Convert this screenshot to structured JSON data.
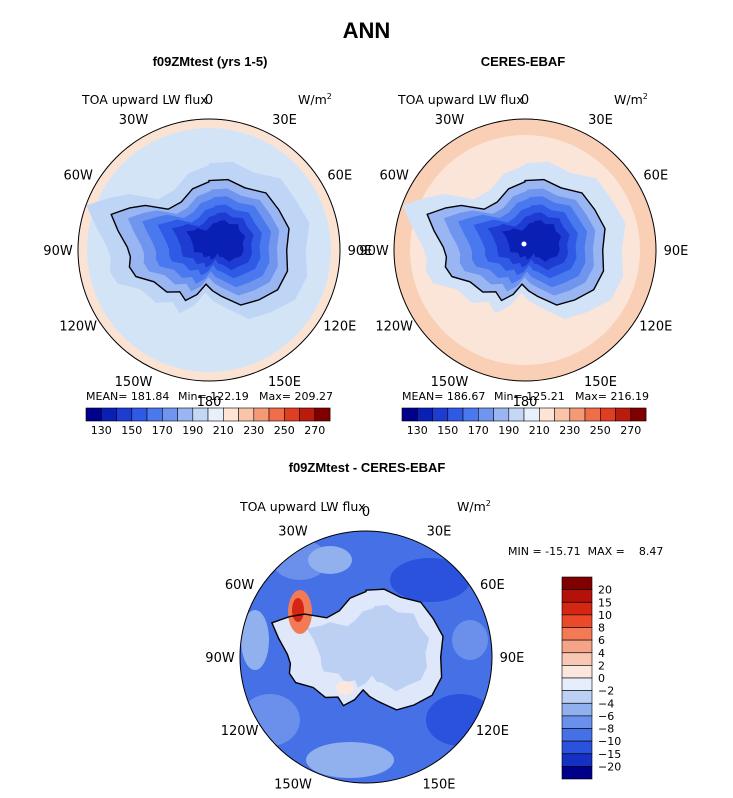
{
  "main_title": "ANN",
  "panels": [
    {
      "title": "f09ZMtest (yrs 1-5)",
      "field": "TOA upward LW flux",
      "units": "W/m",
      "units_exp": "2",
      "stats": {
        "mean": "MEAN= 181.84",
        "min": "Min= 122.19",
        "max": "Max= 209.27"
      }
    },
    {
      "title": "CERES-EBAF",
      "field": "TOA upward LW flux",
      "units": "W/m",
      "units_exp": "2",
      "stats": {
        "mean": "MEAN= 186.67",
        "min": "Min= 125.21",
        "max": "Max= 216.19"
      }
    },
    {
      "title": "f09ZMtest - CERES-EBAF",
      "field": "TOA upward LW flux",
      "units": "W/m",
      "units_exp": "2",
      "stats": {
        "minmax": "MIN = -15.71  MAX =    8.47"
      }
    }
  ],
  "lon_labels": [
    "0",
    "30E",
    "60E",
    "90E",
    "120E",
    "150E",
    "180",
    "150W",
    "120W",
    "90W",
    "60W",
    "30W"
  ],
  "chart_data": [
    {
      "type": "heatmap",
      "title": "f09ZMtest (yrs 1-5)",
      "projection": "south-polar-stereographic",
      "variable": "TOA upward LW flux",
      "units": "W/m2",
      "stats": {
        "mean": 181.84,
        "min": 122.19,
        "max": 209.27
      },
      "colorbar_levels": [
        130,
        140,
        150,
        160,
        170,
        180,
        190,
        200,
        210,
        220,
        230,
        240,
        250,
        260,
        270
      ],
      "colorbar_labels": [
        "130",
        "150",
        "170",
        "190",
        "210",
        "230",
        "250",
        "270"
      ],
      "colorbar_colors": [
        "#00008b",
        "#0a1fb4",
        "#1e3cd2",
        "#2f5ae6",
        "#4a78ee",
        "#6f95ef",
        "#9ab6f2",
        "#c4d7f5",
        "#e8f0fb",
        "#fde4d6",
        "#f9c4a8",
        "#f59a76",
        "#ef6d49",
        "#e03e22",
        "#b91b0d",
        "#800000"
      ]
    },
    {
      "type": "heatmap",
      "title": "CERES-EBAF",
      "projection": "south-polar-stereographic",
      "variable": "TOA upward LW flux",
      "units": "W/m2",
      "stats": {
        "mean": 186.67,
        "min": 125.21,
        "max": 216.19
      },
      "colorbar_levels": [
        130,
        140,
        150,
        160,
        170,
        180,
        190,
        200,
        210,
        220,
        230,
        240,
        250,
        260,
        270
      ],
      "colorbar_labels": [
        "130",
        "150",
        "170",
        "190",
        "210",
        "230",
        "250",
        "270"
      ],
      "colorbar_colors": [
        "#00008b",
        "#0a1fb4",
        "#1e3cd2",
        "#2f5ae6",
        "#4a78ee",
        "#6f95ef",
        "#9ab6f2",
        "#c4d7f5",
        "#e8f0fb",
        "#fde4d6",
        "#f9c4a8",
        "#f59a76",
        "#ef6d49",
        "#e03e22",
        "#b91b0d",
        "#800000"
      ]
    },
    {
      "type": "heatmap",
      "title": "f09ZMtest - CERES-EBAF",
      "projection": "south-polar-stereographic",
      "variable": "TOA upward LW flux",
      "units": "W/m2",
      "stats": {
        "min": -15.71,
        "max": 8.47
      },
      "colorbar_levels": [
        -20,
        -15,
        -10,
        -8,
        -6,
        -4,
        -2,
        0,
        2,
        4,
        6,
        8,
        10,
        15,
        20
      ],
      "colorbar_labels": [
        "20",
        "15",
        "10",
        "8",
        "6",
        "4",
        "2",
        "0",
        "−2",
        "−4",
        "−6",
        "−8",
        "−10",
        "−15",
        "−20"
      ],
      "colorbar_colors": [
        "#800000",
        "#b3110a",
        "#d42612",
        "#eb4a2a",
        "#f27a55",
        "#f6a487",
        "#f9c8b4",
        "#fbe7de",
        "#e6eefb",
        "#bcd0f3",
        "#90b0ee",
        "#6a90eb",
        "#4670e6",
        "#2a52dd",
        "#1431c4",
        "#00008b"
      ]
    }
  ]
}
